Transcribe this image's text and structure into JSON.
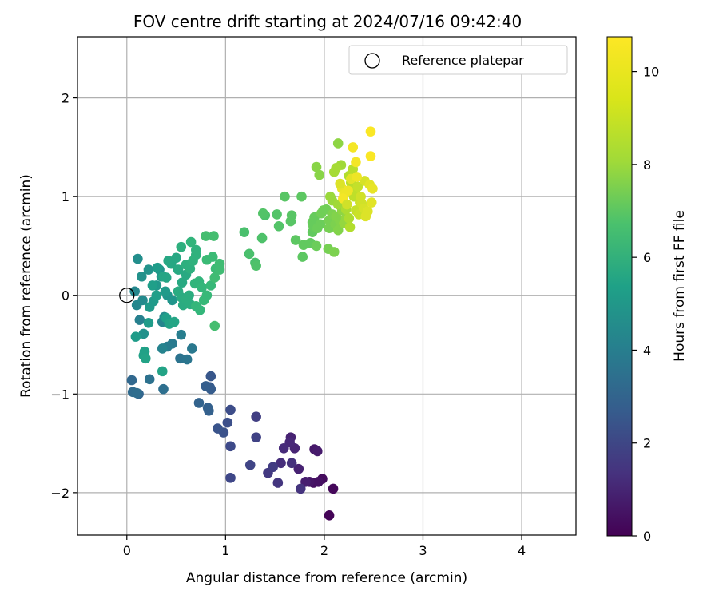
{
  "chart_data": {
    "type": "scatter",
    "title": "FOV centre drift starting at 2024/07/16 09:42:40",
    "xlabel": "Angular distance from reference (arcmin)",
    "ylabel": "Rotation from reference (arcmin)",
    "xlim": [
      -0.5,
      4.55
    ],
    "ylim": [
      -2.43,
      2.62
    ],
    "xticks": [
      0,
      1,
      2,
      3,
      4
    ],
    "yticks": [
      -2,
      -1,
      0,
      1,
      2
    ],
    "grid": true,
    "legend": {
      "position": "top-right",
      "entries": [
        "Reference platepar"
      ]
    },
    "reference_point": {
      "x": 0,
      "y": 0
    },
    "colorbar": {
      "label": "Hours from first FF file",
      "colormap": "viridis",
      "range": [
        0,
        10.75
      ],
      "ticks": [
        0,
        2,
        4,
        6,
        8,
        10
      ]
    },
    "points": [
      {
        "x": 2.05,
        "y": -2.23,
        "t": 0.1
      },
      {
        "x": 2.09,
        "y": -1.96,
        "t": 0.2
      },
      {
        "x": 1.98,
        "y": -1.86,
        "t": 0.3
      },
      {
        "x": 1.89,
        "y": -1.9,
        "t": 0.4
      },
      {
        "x": 1.94,
        "y": -1.89,
        "t": 0.5
      },
      {
        "x": 1.85,
        "y": -1.89,
        "t": 0.6
      },
      {
        "x": 1.9,
        "y": -1.56,
        "t": 0.7
      },
      {
        "x": 1.93,
        "y": -1.58,
        "t": 0.8
      },
      {
        "x": 1.81,
        "y": -1.89,
        "t": 0.9
      },
      {
        "x": 1.74,
        "y": -1.76,
        "t": 1.0
      },
      {
        "x": 1.66,
        "y": -1.44,
        "t": 1.0
      },
      {
        "x": 1.7,
        "y": -1.55,
        "t": 1.1
      },
      {
        "x": 1.65,
        "y": -1.49,
        "t": 1.2
      },
      {
        "x": 1.59,
        "y": -1.55,
        "t": 1.3
      },
      {
        "x": 1.56,
        "y": -1.7,
        "t": 1.4
      },
      {
        "x": 1.67,
        "y": -1.7,
        "t": 1.5
      },
      {
        "x": 1.76,
        "y": -1.96,
        "t": 1.6
      },
      {
        "x": 1.53,
        "y": -1.9,
        "t": 1.7
      },
      {
        "x": 1.43,
        "y": -1.8,
        "t": 1.8
      },
      {
        "x": 1.48,
        "y": -1.74,
        "t": 1.9
      },
      {
        "x": 1.31,
        "y": -1.23,
        "t": 2.0
      },
      {
        "x": 1.31,
        "y": -1.44,
        "t": 2.1
      },
      {
        "x": 1.25,
        "y": -1.72,
        "t": 2.2
      },
      {
        "x": 1.05,
        "y": -1.85,
        "t": 2.3
      },
      {
        "x": 1.05,
        "y": -1.53,
        "t": 2.4
      },
      {
        "x": 1.05,
        "y": -1.16,
        "t": 2.5
      },
      {
        "x": 1.02,
        "y": -1.29,
        "t": 2.6
      },
      {
        "x": 0.98,
        "y": -1.39,
        "t": 2.7
      },
      {
        "x": 0.92,
        "y": -1.35,
        "t": 2.8
      },
      {
        "x": 0.85,
        "y": -0.82,
        "t": 2.9
      },
      {
        "x": 0.84,
        "y": -0.93,
        "t": 3.0
      },
      {
        "x": 0.85,
        "y": -0.95,
        "t": 3.1
      },
      {
        "x": 0.8,
        "y": -0.92,
        "t": 3.2
      },
      {
        "x": 0.82,
        "y": -1.14,
        "t": 3.3
      },
      {
        "x": 0.83,
        "y": -1.17,
        "t": 3.3
      },
      {
        "x": 0.73,
        "y": -1.09,
        "t": 3.4
      },
      {
        "x": 0.12,
        "y": -1.0,
        "t": 3.5
      },
      {
        "x": 0.05,
        "y": -0.86,
        "t": 3.6
      },
      {
        "x": 0.06,
        "y": -0.98,
        "t": 3.7
      },
      {
        "x": 0.1,
        "y": -0.99,
        "t": 3.8
      },
      {
        "x": 0.37,
        "y": -0.95,
        "t": 3.9
      },
      {
        "x": 0.23,
        "y": -0.85,
        "t": 4.0
      },
      {
        "x": 0.54,
        "y": -0.64,
        "t": 4.1
      },
      {
        "x": 0.61,
        "y": -0.65,
        "t": 4.2
      },
      {
        "x": 0.66,
        "y": -0.54,
        "t": 4.3
      },
      {
        "x": 0.46,
        "y": -0.49,
        "t": 4.4
      },
      {
        "x": 0.41,
        "y": -0.52,
        "t": 4.5
      },
      {
        "x": 0.55,
        "y": -0.4,
        "t": 4.6
      },
      {
        "x": 0.13,
        "y": -0.25,
        "t": 4.7
      },
      {
        "x": 0.36,
        "y": -0.54,
        "t": 4.8
      },
      {
        "x": 0.36,
        "y": -0.27,
        "t": 4.9
      },
      {
        "x": 0.08,
        "y": 0.04,
        "t": 5.0
      },
      {
        "x": 0.1,
        "y": -0.1,
        "t": 5.0
      },
      {
        "x": 0.16,
        "y": -0.05,
        "t": 5.1
      },
      {
        "x": 0.38,
        "y": -0.22,
        "t": 5.2
      },
      {
        "x": 0.11,
        "y": 0.37,
        "t": 5.3
      },
      {
        "x": 0.15,
        "y": 0.19,
        "t": 5.4
      },
      {
        "x": 0.17,
        "y": -0.39,
        "t": 5.4
      },
      {
        "x": 0.22,
        "y": 0.26,
        "t": 5.5
      },
      {
        "x": 0.33,
        "y": 0.26,
        "t": 5.5
      },
      {
        "x": 0.41,
        "y": 0.0,
        "t": 5.6
      },
      {
        "x": 0.46,
        "y": -0.05,
        "t": 5.6
      },
      {
        "x": 0.3,
        "y": 0.1,
        "t": 5.7
      },
      {
        "x": 0.35,
        "y": 0.19,
        "t": 5.7
      },
      {
        "x": 0.39,
        "y": 0.04,
        "t": 5.8
      },
      {
        "x": 0.27,
        "y": -0.06,
        "t": 5.8
      },
      {
        "x": 0.23,
        "y": -0.12,
        "t": 5.8
      },
      {
        "x": 0.31,
        "y": 0.28,
        "t": 5.9
      },
      {
        "x": 0.22,
        "y": -0.28,
        "t": 5.9
      },
      {
        "x": 0.09,
        "y": -0.42,
        "t": 5.9
      },
      {
        "x": 0.4,
        "y": -0.23,
        "t": 6.0
      },
      {
        "x": 0.3,
        "y": 0.0,
        "t": 6.0
      },
      {
        "x": 0.26,
        "y": 0.1,
        "t": 6.0
      },
      {
        "x": 0.18,
        "y": -0.57,
        "t": 6.1
      },
      {
        "x": 0.17,
        "y": -0.61,
        "t": 6.1
      },
      {
        "x": 0.19,
        "y": -0.64,
        "t": 6.2
      },
      {
        "x": 0.36,
        "y": -0.77,
        "t": 6.2
      },
      {
        "x": 0.43,
        "y": -0.29,
        "t": 6.2
      },
      {
        "x": 0.48,
        "y": -0.27,
        "t": 6.3
      },
      {
        "x": 0.37,
        "y": 0.19,
        "t": 6.3
      },
      {
        "x": 0.4,
        "y": 0.18,
        "t": 6.3
      },
      {
        "x": 0.45,
        "y": 0.32,
        "t": 6.4
      },
      {
        "x": 0.42,
        "y": 0.35,
        "t": 6.4
      },
      {
        "x": 0.5,
        "y": 0.38,
        "t": 6.4
      },
      {
        "x": 0.52,
        "y": 0.26,
        "t": 6.5
      },
      {
        "x": 0.6,
        "y": 0.21,
        "t": 6.5
      },
      {
        "x": 0.56,
        "y": 0.13,
        "t": 6.5
      },
      {
        "x": 0.52,
        "y": 0.04,
        "t": 6.6
      },
      {
        "x": 0.55,
        "y": -0.02,
        "t": 6.6
      },
      {
        "x": 0.57,
        "y": -0.1,
        "t": 6.6
      },
      {
        "x": 0.6,
        "y": -0.04,
        "t": 6.7
      },
      {
        "x": 0.63,
        "y": 0.0,
        "t": 6.7
      },
      {
        "x": 0.64,
        "y": -0.09,
        "t": 6.7
      },
      {
        "x": 0.55,
        "y": 0.49,
        "t": 6.8
      },
      {
        "x": 0.6,
        "y": 0.31,
        "t": 6.8
      },
      {
        "x": 0.64,
        "y": 0.27,
        "t": 6.8
      },
      {
        "x": 0.67,
        "y": 0.35,
        "t": 6.9
      },
      {
        "x": 0.7,
        "y": 0.41,
        "t": 6.9
      },
      {
        "x": 0.7,
        "y": 0.46,
        "t": 6.9
      },
      {
        "x": 0.65,
        "y": 0.54,
        "t": 7.0
      },
      {
        "x": 0.69,
        "y": 0.12,
        "t": 7.0
      },
      {
        "x": 0.73,
        "y": 0.14,
        "t": 7.0
      },
      {
        "x": 0.76,
        "y": 0.08,
        "t": 7.1
      },
      {
        "x": 0.7,
        "y": -0.11,
        "t": 7.1
      },
      {
        "x": 0.74,
        "y": -0.15,
        "t": 7.1
      },
      {
        "x": 0.78,
        "y": -0.05,
        "t": 7.2
      },
      {
        "x": 0.81,
        "y": 0.0,
        "t": 7.2
      },
      {
        "x": 0.85,
        "y": 0.1,
        "t": 7.2
      },
      {
        "x": 0.81,
        "y": 0.36,
        "t": 7.3
      },
      {
        "x": 0.87,
        "y": 0.39,
        "t": 7.3
      },
      {
        "x": 0.9,
        "y": 0.27,
        "t": 7.3
      },
      {
        "x": 0.89,
        "y": 0.18,
        "t": 7.4
      },
      {
        "x": 0.94,
        "y": 0.26,
        "t": 7.4
      },
      {
        "x": 0.94,
        "y": 0.32,
        "t": 7.4
      },
      {
        "x": 0.89,
        "y": -0.31,
        "t": 7.5
      },
      {
        "x": 0.8,
        "y": 0.6,
        "t": 7.5
      },
      {
        "x": 0.88,
        "y": 0.6,
        "t": 7.5
      },
      {
        "x": 1.19,
        "y": 0.64,
        "t": 7.6
      },
      {
        "x": 1.24,
        "y": 0.42,
        "t": 7.6
      },
      {
        "x": 1.3,
        "y": 0.33,
        "t": 7.6
      },
      {
        "x": 1.31,
        "y": 0.3,
        "t": 7.7
      },
      {
        "x": 1.37,
        "y": 0.58,
        "t": 7.7
      },
      {
        "x": 1.4,
        "y": 0.81,
        "t": 7.7
      },
      {
        "x": 1.38,
        "y": 0.83,
        "t": 7.8
      },
      {
        "x": 1.52,
        "y": 0.82,
        "t": 7.8
      },
      {
        "x": 1.54,
        "y": 0.7,
        "t": 7.8
      },
      {
        "x": 1.6,
        "y": 1.0,
        "t": 7.9
      },
      {
        "x": 1.66,
        "y": 0.75,
        "t": 7.9
      },
      {
        "x": 1.67,
        "y": 0.81,
        "t": 7.9
      },
      {
        "x": 1.71,
        "y": 0.56,
        "t": 8.0
      },
      {
        "x": 1.77,
        "y": 1.0,
        "t": 8.0
      },
      {
        "x": 1.78,
        "y": 0.39,
        "t": 8.0
      },
      {
        "x": 1.79,
        "y": 0.51,
        "t": 8.1
      },
      {
        "x": 1.86,
        "y": 0.53,
        "t": 8.1
      },
      {
        "x": 1.88,
        "y": 0.64,
        "t": 8.1
      },
      {
        "x": 1.88,
        "y": 0.74,
        "t": 8.2
      },
      {
        "x": 1.89,
        "y": 0.7,
        "t": 8.2
      },
      {
        "x": 1.9,
        "y": 0.79,
        "t": 8.2
      },
      {
        "x": 1.92,
        "y": 0.5,
        "t": 8.3
      },
      {
        "x": 1.93,
        "y": 0.68,
        "t": 8.3
      },
      {
        "x": 1.96,
        "y": 0.72,
        "t": 8.3
      },
      {
        "x": 1.97,
        "y": 0.83,
        "t": 8.4
      },
      {
        "x": 1.99,
        "y": 0.86,
        "t": 8.4
      },
      {
        "x": 2.02,
        "y": 0.87,
        "t": 8.4
      },
      {
        "x": 2.04,
        "y": 0.47,
        "t": 8.5
      },
      {
        "x": 2.05,
        "y": 0.68,
        "t": 8.5
      },
      {
        "x": 2.05,
        "y": 0.76,
        "t": 8.5
      },
      {
        "x": 2.08,
        "y": 0.82,
        "t": 8.6
      },
      {
        "x": 2.1,
        "y": 0.44,
        "t": 8.6
      },
      {
        "x": 2.11,
        "y": 0.72,
        "t": 8.6
      },
      {
        "x": 2.12,
        "y": 0.8,
        "t": 8.7
      },
      {
        "x": 2.14,
        "y": 0.66,
        "t": 8.7
      },
      {
        "x": 2.16,
        "y": 0.75,
        "t": 8.7
      },
      {
        "x": 1.92,
        "y": 1.3,
        "t": 8.8
      },
      {
        "x": 1.95,
        "y": 1.22,
        "t": 8.8
      },
      {
        "x": 2.14,
        "y": 1.54,
        "t": 8.9
      },
      {
        "x": 2.18,
        "y": 0.86,
        "t": 8.9
      },
      {
        "x": 2.2,
        "y": 0.73,
        "t": 9.0
      },
      {
        "x": 2.22,
        "y": 0.78,
        "t": 9.0
      },
      {
        "x": 2.06,
        "y": 1.0,
        "t": 9.1
      },
      {
        "x": 2.08,
        "y": 0.96,
        "t": 9.1
      },
      {
        "x": 2.14,
        "y": 0.92,
        "t": 9.2
      },
      {
        "x": 2.17,
        "y": 1.32,
        "t": 9.2
      },
      {
        "x": 2.1,
        "y": 1.25,
        "t": 9.3
      },
      {
        "x": 2.12,
        "y": 1.29,
        "t": 9.3
      },
      {
        "x": 2.22,
        "y": 0.87,
        "t": 9.4
      },
      {
        "x": 2.25,
        "y": 0.78,
        "t": 9.4
      },
      {
        "x": 2.26,
        "y": 0.69,
        "t": 9.5
      },
      {
        "x": 2.25,
        "y": 1.21,
        "t": 9.5
      },
      {
        "x": 2.27,
        "y": 1.14,
        "t": 9.6
      },
      {
        "x": 2.29,
        "y": 1.28,
        "t": 9.6
      },
      {
        "x": 2.3,
        "y": 1.0,
        "t": 9.7
      },
      {
        "x": 2.31,
        "y": 1.06,
        "t": 9.7
      },
      {
        "x": 2.32,
        "y": 0.86,
        "t": 9.8
      },
      {
        "x": 2.34,
        "y": 1.1,
        "t": 9.8
      },
      {
        "x": 2.35,
        "y": 0.82,
        "t": 9.9
      },
      {
        "x": 2.36,
        "y": 0.94,
        "t": 9.9
      },
      {
        "x": 2.37,
        "y": 1.0,
        "t": 10.0
      },
      {
        "x": 2.38,
        "y": 0.93,
        "t": 10.0
      },
      {
        "x": 2.4,
        "y": 0.88,
        "t": 10.1
      },
      {
        "x": 2.41,
        "y": 1.16,
        "t": 10.1
      },
      {
        "x": 2.42,
        "y": 0.8,
        "t": 10.2
      },
      {
        "x": 2.44,
        "y": 0.85,
        "t": 10.2
      },
      {
        "x": 2.46,
        "y": 1.12,
        "t": 10.3
      },
      {
        "x": 2.48,
        "y": 0.94,
        "t": 10.3
      },
      {
        "x": 2.49,
        "y": 1.08,
        "t": 10.4
      },
      {
        "x": 2.18,
        "y": 1.08,
        "t": 10.4
      },
      {
        "x": 2.2,
        "y": 1.02,
        "t": 10.5
      },
      {
        "x": 2.24,
        "y": 1.06,
        "t": 10.5
      },
      {
        "x": 2.32,
        "y": 1.35,
        "t": 10.6
      },
      {
        "x": 2.29,
        "y": 1.5,
        "t": 10.6
      },
      {
        "x": 2.47,
        "y": 1.41,
        "t": 10.7
      },
      {
        "x": 2.47,
        "y": 1.66,
        "t": 10.7
      },
      {
        "x": 2.16,
        "y": 1.13,
        "t": 10.2
      },
      {
        "x": 2.19,
        "y": 0.98,
        "t": 10.6
      },
      {
        "x": 2.23,
        "y": 0.92,
        "t": 10.0
      },
      {
        "x": 2.27,
        "y": 1.18,
        "t": 10.3
      },
      {
        "x": 2.33,
        "y": 1.2,
        "t": 10.5
      }
    ]
  }
}
